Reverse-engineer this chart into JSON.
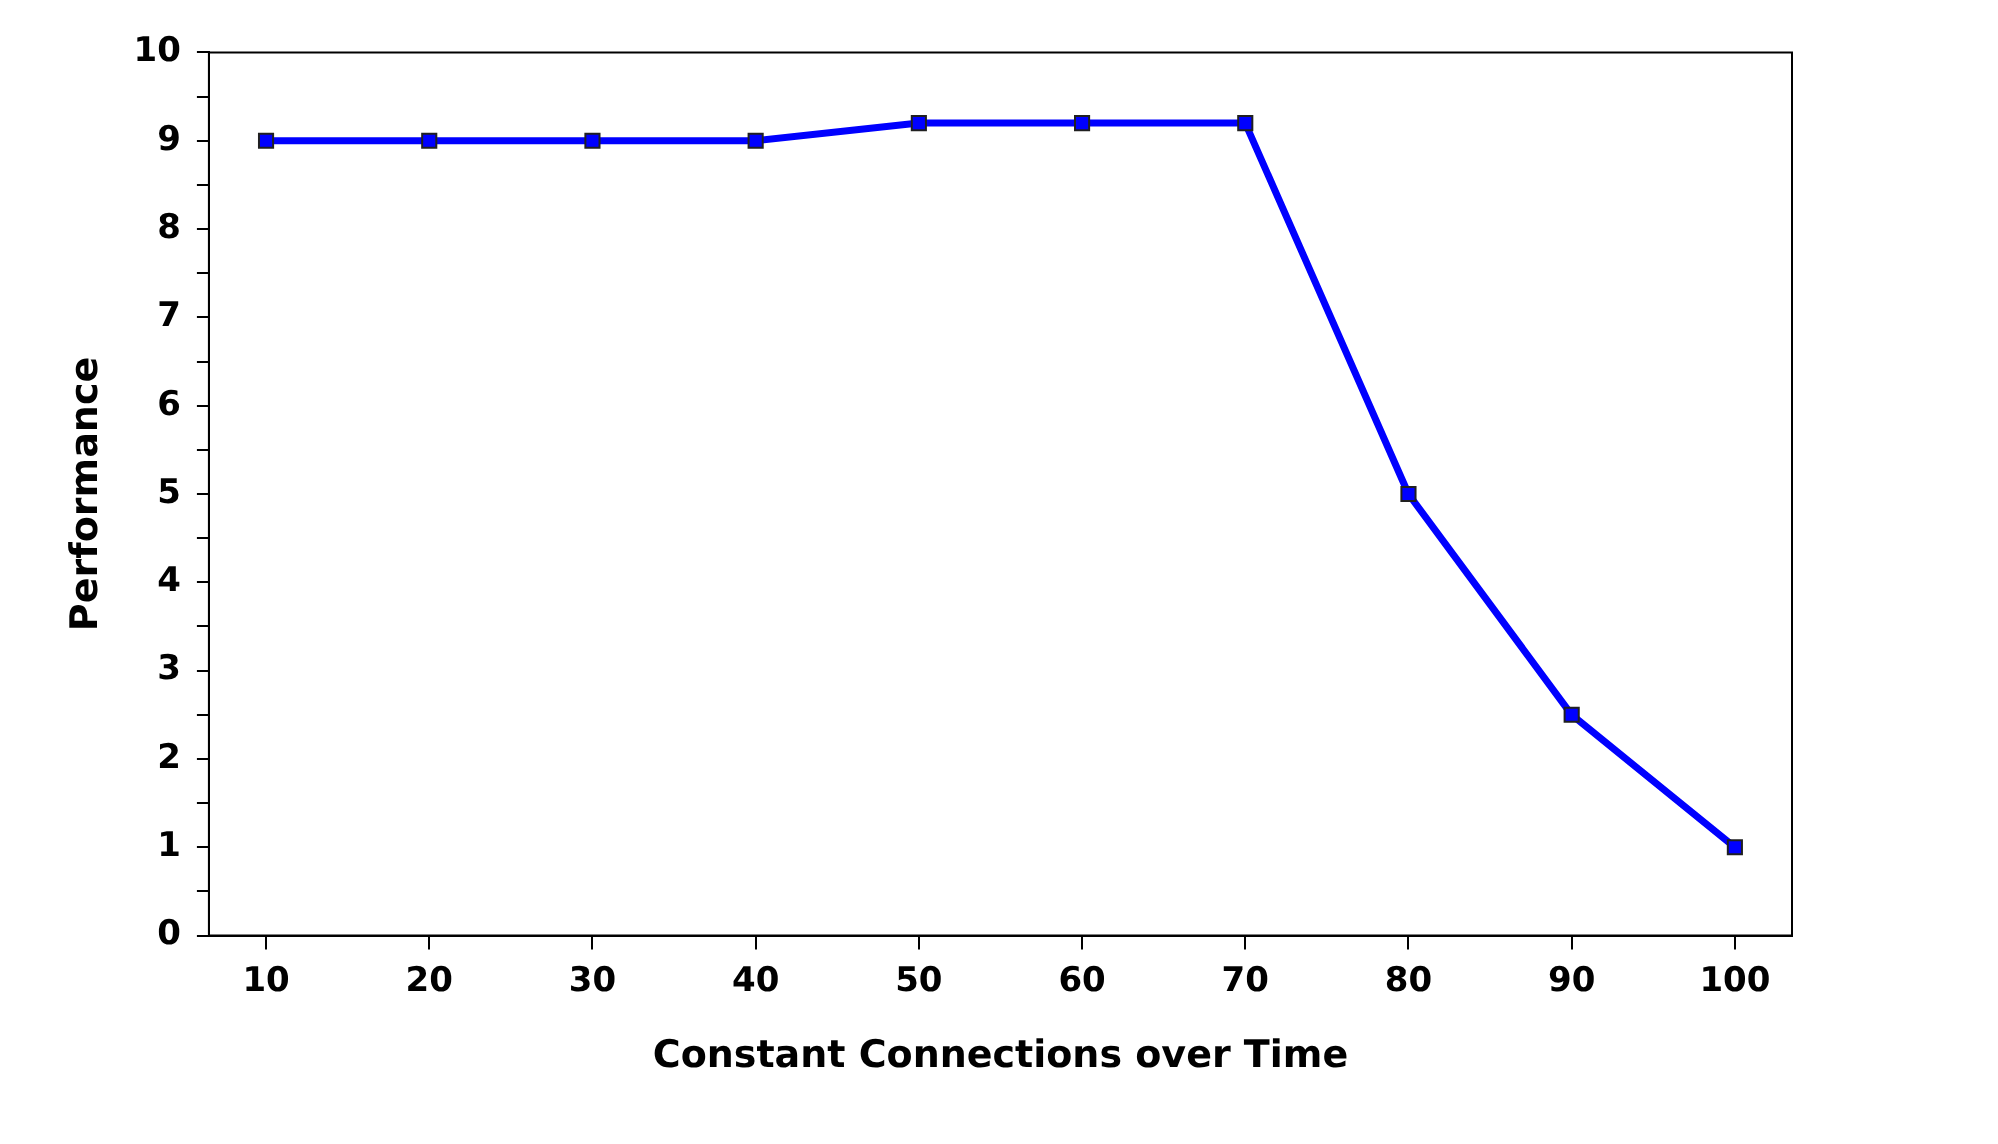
{
  "chart_data": {
    "type": "line",
    "xlabel": "Constant Connections over Time",
    "ylabel": "Performance",
    "x": [
      10,
      20,
      30,
      40,
      50,
      60,
      70,
      80,
      90,
      100
    ],
    "series": [
      {
        "color": "#0000ff",
        "values": [
          9,
          9,
          9,
          9,
          9.2,
          9.2,
          9.2,
          5,
          2.5,
          1
        ]
      }
    ],
    "xlim": [
      6.5,
      103.5
    ],
    "xticks": [
      10,
      20,
      30,
      40,
      50,
      60,
      70,
      80,
      90,
      100
    ],
    "ylim": [
      0,
      10
    ],
    "yticks": [
      0,
      {
        "value": 0.5,
        "label": null
      },
      1,
      {
        "value": 1.5,
        "label": null
      },
      2,
      {
        "value": 2.5,
        "label": null
      },
      3,
      {
        "value": 3.5,
        "label": null
      },
      4,
      {
        "value": 4.5,
        "label": null
      },
      5,
      {
        "value": 5.5,
        "label": null
      },
      6,
      {
        "value": 6.5,
        "label": null
      },
      7,
      {
        "value": 7.5,
        "label": null
      },
      8,
      {
        "value": 8.5,
        "label": null
      },
      9,
      {
        "value": 9.5,
        "label": null
      },
      10
    ],
    "marker": "square",
    "line_style": "solid",
    "legend": false
  }
}
